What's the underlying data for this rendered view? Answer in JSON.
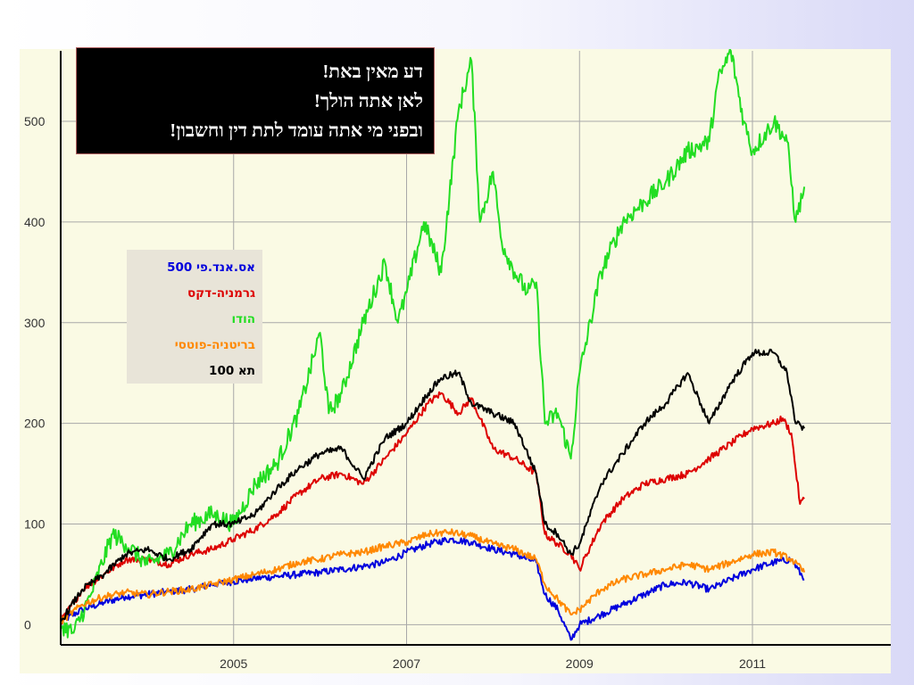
{
  "slide": {
    "title_lines": [
      "דע מאין באת!",
      "לאן אתה הולך!",
      "ובפני מי אתה עומד לתת דין וחשבון!"
    ]
  },
  "chart_data": {
    "type": "line",
    "title": "",
    "xlabel": "",
    "ylabel": "",
    "xlim": [
      2003.0,
      2012.6
    ],
    "ylim": [
      -20,
      570
    ],
    "xticks": [
      2005,
      2007,
      2009,
      2011
    ],
    "xtick_labels": [
      "2005",
      "2007",
      "2009",
      "2011"
    ],
    "yticks": [
      0,
      100,
      200,
      300,
      400,
      500
    ],
    "ytick_labels": [
      "0",
      "100",
      "200",
      "300",
      "400",
      "500"
    ],
    "grid": true,
    "legend_position": "upper-left",
    "legend": [
      "אס.אנד.פי 500",
      "גרמניה-דקס",
      "הודו",
      "בריטניה-פוטסי",
      "תא 100"
    ],
    "series": [
      {
        "name": "אס.אנד.פי 500",
        "color": "#0000dd",
        "x": [
          2003.0,
          2003.25,
          2003.5,
          2003.75,
          2004.0,
          2004.25,
          2004.5,
          2004.75,
          2005.0,
          2005.25,
          2005.5,
          2005.75,
          2006.0,
          2006.25,
          2006.5,
          2006.75,
          2007.0,
          2007.25,
          2007.5,
          2007.75,
          2008.0,
          2008.25,
          2008.5,
          2008.6,
          2008.75,
          2008.9,
          2009.0,
          2009.25,
          2009.5,
          2009.75,
          2010.0,
          2010.25,
          2010.5,
          2010.75,
          2011.0,
          2011.25,
          2011.45,
          2011.6
        ],
        "y": [
          3,
          15,
          22,
          28,
          30,
          33,
          35,
          40,
          43,
          46,
          48,
          50,
          52,
          55,
          58,
          62,
          72,
          80,
          85,
          82,
          75,
          70,
          62,
          30,
          15,
          -15,
          0,
          10,
          20,
          30,
          40,
          42,
          35,
          45,
          55,
          62,
          65,
          45
        ]
      },
      {
        "name": "גרמניה-דקס",
        "color": "#dd0000",
        "x": [
          2003.0,
          2003.25,
          2003.5,
          2003.75,
          2004.0,
          2004.25,
          2004.5,
          2004.75,
          2005.0,
          2005.25,
          2005.5,
          2005.75,
          2006.0,
          2006.25,
          2006.5,
          2006.75,
          2007.0,
          2007.25,
          2007.4,
          2007.6,
          2007.75,
          2008.0,
          2008.25,
          2008.5,
          2008.6,
          2008.75,
          2008.9,
          2009.0,
          2009.25,
          2009.5,
          2009.75,
          2010.0,
          2010.25,
          2010.5,
          2010.75,
          2011.0,
          2011.25,
          2011.35,
          2011.45,
          2011.55,
          2011.6
        ],
        "y": [
          3,
          35,
          50,
          65,
          65,
          60,
          70,
          75,
          85,
          95,
          110,
          130,
          145,
          150,
          140,
          165,
          190,
          220,
          230,
          210,
          225,
          175,
          165,
          150,
          90,
          80,
          70,
          55,
          100,
          125,
          140,
          145,
          150,
          165,
          180,
          195,
          200,
          205,
          190,
          120,
          125
        ]
      },
      {
        "name": "הודו",
        "color": "#22dd22",
        "x": [
          2003.0,
          2003.15,
          2003.35,
          2003.6,
          2003.75,
          2004.0,
          2004.25,
          2004.5,
          2004.75,
          2005.0,
          2005.25,
          2005.5,
          2005.75,
          2006.0,
          2006.1,
          2006.25,
          2006.5,
          2006.75,
          2006.9,
          2007.0,
          2007.2,
          2007.4,
          2007.6,
          2007.75,
          2007.85,
          2008.0,
          2008.1,
          2008.25,
          2008.4,
          2008.5,
          2008.6,
          2008.75,
          2008.9,
          2009.0,
          2009.25,
          2009.5,
          2009.75,
          2010.0,
          2010.25,
          2010.5,
          2010.6,
          2010.75,
          2010.9,
          2011.0,
          2011.25,
          2011.4,
          2011.5,
          2011.6
        ],
        "y": [
          0,
          -8,
          30,
          90,
          80,
          60,
          70,
          100,
          110,
          100,
          140,
          160,
          210,
          290,
          210,
          230,
          300,
          360,
          300,
          330,
          400,
          350,
          510,
          560,
          400,
          450,
          380,
          350,
          330,
          340,
          200,
          210,
          165,
          250,
          350,
          400,
          420,
          440,
          470,
          480,
          540,
          570,
          500,
          470,
          500,
          480,
          400,
          435
        ]
      },
      {
        "name": "בריטניה-פוטסי",
        "color": "#ff8800",
        "x": [
          2003.0,
          2003.25,
          2003.5,
          2003.75,
          2004.0,
          2004.25,
          2004.5,
          2004.75,
          2005.0,
          2005.25,
          2005.5,
          2005.75,
          2006.0,
          2006.25,
          2006.5,
          2006.75,
          2007.0,
          2007.25,
          2007.5,
          2007.75,
          2008.0,
          2008.25,
          2008.5,
          2008.6,
          2008.75,
          2008.9,
          2009.0,
          2009.25,
          2009.5,
          2009.75,
          2010.0,
          2010.25,
          2010.5,
          2010.75,
          2011.0,
          2011.25,
          2011.45,
          2011.6
        ],
        "y": [
          3,
          20,
          28,
          32,
          30,
          33,
          35,
          40,
          45,
          50,
          55,
          62,
          65,
          70,
          72,
          78,
          82,
          90,
          92,
          88,
          80,
          75,
          65,
          40,
          25,
          10,
          15,
          35,
          45,
          50,
          55,
          60,
          55,
          62,
          70,
          72,
          65,
          52
        ]
      },
      {
        "name": "תא 100",
        "color": "#000000",
        "x": [
          2003.0,
          2003.25,
          2003.5,
          2003.75,
          2004.0,
          2004.25,
          2004.5,
          2004.75,
          2005.0,
          2005.25,
          2005.5,
          2005.75,
          2006.0,
          2006.25,
          2006.5,
          2006.75,
          2007.0,
          2007.25,
          2007.4,
          2007.6,
          2007.75,
          2008.0,
          2008.25,
          2008.5,
          2008.6,
          2008.75,
          2008.9,
          2009.0,
          2009.25,
          2009.5,
          2009.75,
          2010.0,
          2010.25,
          2010.5,
          2010.75,
          2011.0,
          2011.25,
          2011.4,
          2011.5,
          2011.6
        ],
        "y": [
          3,
          35,
          50,
          70,
          75,
          65,
          75,
          100,
          100,
          110,
          135,
          155,
          170,
          175,
          145,
          185,
          200,
          230,
          245,
          250,
          220,
          210,
          200,
          150,
          100,
          90,
          70,
          80,
          140,
          170,
          200,
          220,
          250,
          200,
          240,
          270,
          270,
          250,
          200,
          195
        ]
      }
    ]
  }
}
